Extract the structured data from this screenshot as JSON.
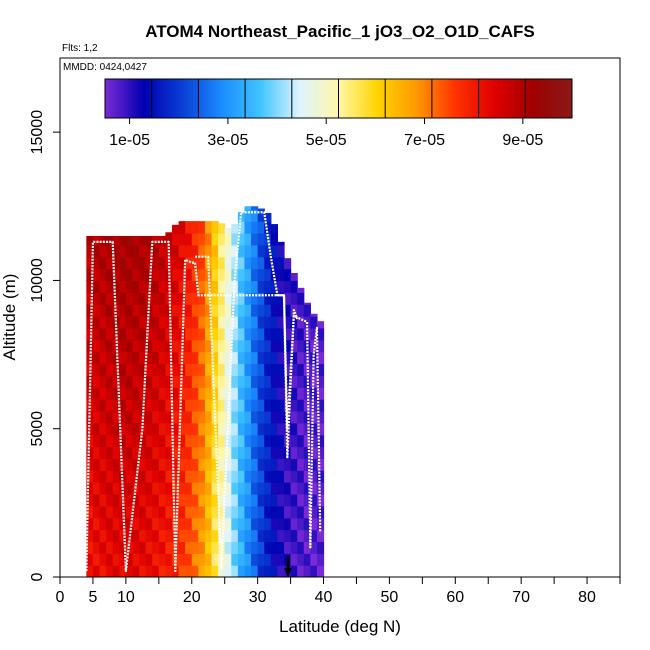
{
  "chart_data": {
    "type": "heatmap",
    "title": "ATOM4 Northeast_Pacific_1 jO3_O2_O1D_CAFS",
    "subtitle": "Flts: 1,2",
    "annotation": "MMDD: 0424,0427",
    "xlabel": "Latitude (deg N)",
    "ylabel": "Altitude (m)",
    "xlim": [
      0,
      85
    ],
    "ylim": [
      0,
      17500
    ],
    "x_ticks": [
      0,
      5,
      10,
      20,
      30,
      40,
      50,
      60,
      70,
      80
    ],
    "x_tick_labels": [
      "0",
      "5",
      "10",
      "20",
      "30",
      "40",
      "50",
      "60",
      "70",
      "80"
    ],
    "y_ticks": [
      0,
      5000,
      10000,
      15000
    ],
    "y_tick_labels": [
      "0",
      "5000",
      "10000",
      "15000"
    ],
    "colorbar": {
      "range": [
        5e-06,
        0.0001
      ],
      "tick_values": [
        1e-05,
        3e-05,
        5e-05,
        7e-05,
        9e-05
      ],
      "tick_labels": [
        "1e-05",
        "3e-05",
        "5e-05",
        "7e-05",
        "9e-05"
      ],
      "colors": [
        "#7b2bd6",
        "#0000b0",
        "#0a3fd6",
        "#1a8cff",
        "#40c4ff",
        "#dff4ff",
        "#fff7a8",
        "#ffd400",
        "#ff9900",
        "#ff3300",
        "#e00000",
        "#a00000",
        "#8a1a1a"
      ]
    },
    "heat_profile": {
      "lat": [
        4,
        7,
        10,
        13,
        16,
        18,
        20,
        22,
        24,
        26,
        28,
        30,
        32,
        34,
        36,
        38,
        40
      ],
      "value": [
        8.8e-05,
        9e-05,
        9.1e-05,
        9e-05,
        8.7e-05,
        8.4e-05,
        7.9e-05,
        7.2e-05,
        5.8e-05,
        4.5e-05,
        3.4e-05,
        2.4e-05,
        1.6e-05,
        1.1e-05,
        9e-06,
        8e-06,
        8e-06
      ],
      "top_alt": [
        11500,
        11500,
        11500,
        11500,
        11500,
        12000,
        12000,
        12000,
        12000,
        11700,
        12500,
        12500,
        12200,
        11000,
        10000,
        9000,
        8500
      ],
      "bottom_alt": [
        300,
        300,
        300,
        300,
        300,
        300,
        300,
        300,
        300,
        300,
        300,
        300,
        300,
        300,
        300,
        0,
        0
      ]
    },
    "flight_tracks": [
      {
        "lat": [
          4.0,
          5.0,
          7.0,
          8.0,
          10.0,
          12.5,
          14.0,
          15.0,
          16.5,
          17.5,
          19.0,
          20.0,
          20.5,
          21.0,
          22.5,
          24.0,
          24.5,
          26.0,
          27.0,
          28.0,
          29.5,
          30.0,
          31.5,
          33.0,
          34.0,
          34.5,
          35.5,
          36.0
        ],
        "alt": [
          200,
          11300,
          11300,
          11300,
          200,
          5000,
          11300,
          11300,
          11300,
          200,
          10700,
          10600,
          10600,
          9500,
          9500,
          9500,
          9500,
          9500,
          9500,
          9500,
          9500,
          9500,
          9500,
          9500,
          9500,
          4000,
          9000,
          8700
        ]
      },
      {
        "lat": [
          20.5,
          22.5,
          24.5,
          26.5,
          27.5,
          29.0,
          30.0,
          31.0,
          32.0,
          33.0,
          33.5,
          34.0,
          34.5,
          35.5,
          36.5,
          37.5,
          38.0,
          38.5,
          39.0,
          39.5
        ],
        "alt": [
          10800,
          10800,
          300,
          10000,
          12300,
          12300,
          12300,
          12300,
          10800,
          9500,
          9500,
          9500,
          5000,
          8800,
          8700,
          8600,
          1000,
          7500,
          8400,
          1500
        ]
      }
    ]
  }
}
